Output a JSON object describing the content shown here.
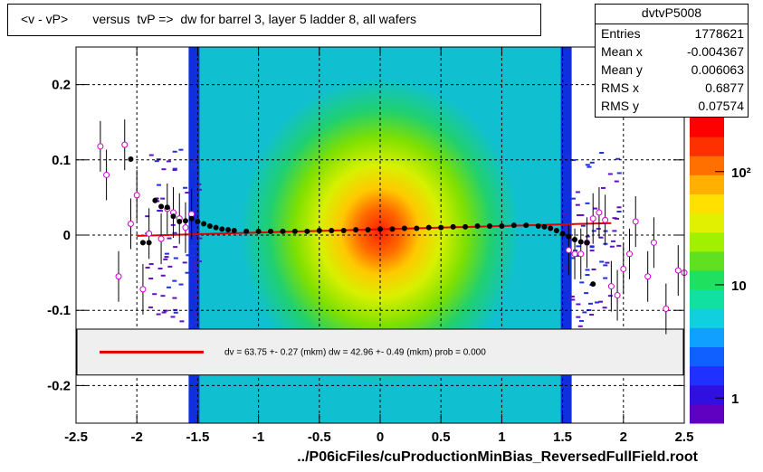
{
  "title": "<v - vP>       versus  tvP =>  dw for barrel 3, layer 5 ladder 8, all wafers",
  "stats": {
    "name": "dvtvP5008",
    "rows": [
      {
        "label": "Entries",
        "value": "1778621"
      },
      {
        "label": "Mean x",
        "value": "-0.004367"
      },
      {
        "label": "Mean y",
        "value": "0.006063"
      },
      {
        "label": "RMS x",
        "value": "0.6877"
      },
      {
        "label": "RMS y",
        "value": "0.07574"
      }
    ]
  },
  "fit_legend": "dv =   63.75 +-  0.27 (mkm) dw =   42.96 +-  0.49 (mkm) prob = 0.000",
  "xlabel": "../P06icFiles/cuProductionMinBias_ReversedFullField.root",
  "colors": {
    "fit_line": "#e00000",
    "profile_black": "#000000",
    "profile_magenta": "#cc00cc"
  },
  "chart_data": {
    "type": "heatmap",
    "xlim": [
      -2.5,
      2.5
    ],
    "ylim": [
      -0.25,
      0.25
    ],
    "x_ticks": [
      -2.5,
      -2,
      -1.5,
      -1,
      -0.5,
      0,
      0.5,
      1,
      1.5,
      2,
      2.5
    ],
    "x_tick_labels": [
      "-2.5",
      "-2",
      "-1.5",
      "-1",
      "-0.5",
      "0",
      "0.5",
      "1",
      "1.5",
      "2",
      "2.5"
    ],
    "y_ticks": [
      -0.2,
      -0.1,
      0,
      0.1,
      0.2
    ],
    "y_tick_labels": [
      "-0.2",
      "-0.1",
      "0",
      "0.1",
      "0.2"
    ],
    "grid": true,
    "colorbar": {
      "scale": "log",
      "min": 0.6,
      "max": 300,
      "tick_values": [
        1,
        10,
        100
      ],
      "tick_labels": [
        "1",
        "10",
        "10²"
      ]
    },
    "density": {
      "x_core": [
        -1.5,
        1.5
      ],
      "y_center": 0.005,
      "rms_y": 0.075
    },
    "fit_line": {
      "x": [
        -2.0,
        1.9
      ],
      "y": [
        -0.001,
        0.016
      ]
    },
    "profile_black": {
      "x": [
        -2.05,
        -1.95,
        -1.9,
        -1.85,
        -1.8,
        -1.75,
        -1.7,
        -1.65,
        -1.6,
        -1.55,
        -1.5,
        -1.45,
        -1.4,
        -1.35,
        -1.3,
        -1.25,
        -1.2,
        -1.1,
        -1.0,
        -0.9,
        -0.8,
        -0.7,
        -0.6,
        -0.5,
        -0.4,
        -0.3,
        -0.2,
        -0.1,
        0.0,
        0.1,
        0.2,
        0.3,
        0.4,
        0.5,
        0.6,
        0.7,
        0.8,
        0.9,
        1.0,
        1.1,
        1.2,
        1.3,
        1.35,
        1.4,
        1.45,
        1.5,
        1.55,
        1.6,
        1.65,
        1.7,
        1.75
      ],
      "y": [
        0.101,
        -0.01,
        -0.01,
        0.046,
        0.038,
        0.037,
        0.025,
        0.018,
        0.019,
        0.022,
        0.018,
        0.015,
        0.012,
        0.01,
        0.008,
        0.007,
        0.006,
        0.005,
        0.005,
        0.005,
        0.005,
        0.005,
        0.005,
        0.006,
        0.006,
        0.006,
        0.007,
        0.007,
        0.008,
        0.008,
        0.009,
        0.009,
        0.01,
        0.01,
        0.011,
        0.011,
        0.012,
        0.012,
        0.012,
        0.013,
        0.013,
        0.012,
        0.011,
        0.009,
        0.006,
        0.002,
        -0.002,
        -0.006,
        -0.009,
        -0.01,
        -0.065
      ]
    },
    "profile_magenta": {
      "x": [
        -2.3,
        -2.25,
        -2.15,
        -2.1,
        -2.05,
        -2.0,
        -1.95,
        -1.9,
        -1.8,
        -1.75,
        -1.7,
        -1.65,
        -1.6,
        -1.55,
        1.55,
        1.6,
        1.65,
        1.7,
        1.75,
        1.8,
        1.85,
        1.9,
        1.95,
        2.0,
        2.05,
        2.1,
        2.2,
        2.25,
        2.35,
        2.45,
        2.5
      ],
      "y": [
        0.118,
        0.08,
        -0.055,
        0.12,
        0.015,
        0.053,
        -0.072,
        0.002,
        -0.005,
        0.035,
        0.03,
        0.022,
        0.01,
        0.028,
        -0.02,
        -0.025,
        -0.025,
        -0.01,
        0.022,
        0.03,
        0.02,
        -0.068,
        -0.08,
        -0.045,
        -0.025,
        0.018,
        -0.055,
        -0.01,
        -0.098,
        -0.047,
        -0.05
      ]
    }
  }
}
